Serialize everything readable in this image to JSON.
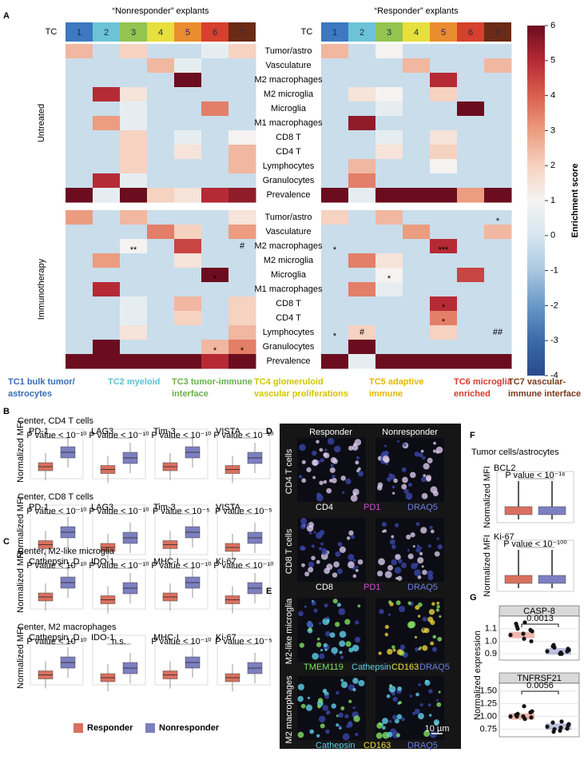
{
  "panel_a": {
    "label": "A",
    "titles": [
      "“Nonresponder” explants",
      "“Responder” explants"
    ],
    "tc_label": "TC",
    "clusters": [
      "1",
      "2",
      "3",
      "4",
      "5",
      "6",
      "7"
    ],
    "cluster_colors": [
      "#3d78c0",
      "#6cc3d8",
      "#93c450",
      "#e6df3c",
      "#ea8c30",
      "#d6402c",
      "#6b2a16"
    ],
    "rows": [
      "Tumor/astro",
      "Vasculature",
      "M2 macrophages",
      "M2 microglia",
      "Microglia",
      "M1 macrophages",
      "CD8 T",
      "CD4 T",
      "Lymphocytes",
      "Granulocytes",
      "Prevalence"
    ],
    "groups": [
      "Untreated",
      "Immunotherapy"
    ],
    "heatmaps": [
      {
        "values": [
          [
            2.5,
            -0.3,
            2,
            -0.3,
            -0.3,
            0.5,
            2
          ],
          [
            -0.3,
            -0.3,
            -0.3,
            2.5,
            0.5,
            -0.3,
            -0.3
          ],
          [
            -0.3,
            -0.3,
            -0.3,
            -0.3,
            6,
            -0.3,
            -0.3
          ],
          [
            -0.3,
            5,
            1.5,
            -0.3,
            -0.3,
            -0.3,
            -0.3
          ],
          [
            -0.3,
            -0.3,
            0.5,
            -0.3,
            -0.3,
            3.5,
            -0.3
          ],
          [
            -0.3,
            3,
            0.5,
            -0.3,
            -0.3,
            -0.3,
            -0.3
          ],
          [
            -0.3,
            -0.3,
            2,
            -0.3,
            0.5,
            -0.3,
            1
          ],
          [
            -0.3,
            -0.3,
            2,
            -0.3,
            1.5,
            -0.3,
            2.5
          ],
          [
            -0.3,
            -0.3,
            2,
            -0.3,
            -0.3,
            -0.3,
            2.5
          ],
          [
            -0.3,
            5,
            0.5,
            -0.3,
            -0.3,
            -0.3,
            -0.3
          ],
          [
            6,
            0.5,
            6,
            2,
            1.5,
            5,
            5.5
          ]
        ],
        "marks": []
      },
      {
        "values": [
          [
            2.5,
            -0.3,
            1,
            -0.3,
            -0.3,
            -0.3,
            -0.3
          ],
          [
            -0.3,
            -0.3,
            -0.3,
            2.5,
            -0.3,
            -0.3,
            2.5
          ],
          [
            -0.3,
            -0.3,
            -0.3,
            -0.3,
            5,
            -0.3,
            -0.3
          ],
          [
            -0.3,
            1.5,
            1,
            -0.3,
            2,
            -0.3,
            -0.3
          ],
          [
            -0.3,
            -0.3,
            0.5,
            -0.3,
            -0.3,
            6,
            -0.3
          ],
          [
            -0.3,
            5.5,
            -0.3,
            -0.3,
            -0.3,
            -0.3,
            -0.3
          ],
          [
            -0.3,
            -0.3,
            0.5,
            -0.3,
            1.5,
            -0.3,
            -0.3
          ],
          [
            -0.3,
            -0.3,
            1.5,
            -0.3,
            2,
            -0.3,
            -0.3
          ],
          [
            -0.3,
            2.5,
            -0.3,
            -0.3,
            1,
            -0.3,
            -0.3
          ],
          [
            -0.3,
            3.5,
            -0.3,
            -0.3,
            -0.3,
            -0.3,
            -0.3
          ],
          [
            6,
            0.5,
            6,
            6,
            6,
            3,
            6
          ]
        ],
        "marks": []
      },
      {
        "values": [
          [
            3,
            -0.3,
            2.5,
            -0.3,
            -0.3,
            -0.3,
            1.5
          ],
          [
            -0.3,
            -0.3,
            -0.3,
            3.5,
            2,
            -0.3,
            3
          ],
          [
            -0.3,
            -0.3,
            1,
            -0.3,
            4.5,
            -0.3,
            -0.3
          ],
          [
            -0.3,
            3,
            -0.3,
            -0.3,
            1.5,
            -0.3,
            -0.3
          ],
          [
            -0.3,
            -0.3,
            -0.3,
            -0.3,
            -0.3,
            6,
            -0.3
          ],
          [
            -0.3,
            5,
            -0.3,
            -0.3,
            -0.3,
            -0.3,
            -0.3
          ],
          [
            -0.3,
            -0.3,
            0.5,
            -0.3,
            2.5,
            -0.3,
            2
          ],
          [
            -0.3,
            -0.3,
            0.5,
            -0.3,
            2,
            -0.3,
            2
          ],
          [
            -0.3,
            -0.3,
            1.5,
            -0.3,
            -0.3,
            -0.3,
            2.5
          ],
          [
            -0.3,
            6,
            -0.3,
            -0.3,
            -0.3,
            2.5,
            3.5
          ],
          [
            6,
            6,
            6,
            6,
            6,
            5,
            6
          ]
        ],
        "marks": [
          [
            null,
            null,
            null,
            null,
            null,
            null,
            null
          ],
          [
            null,
            null,
            null,
            null,
            null,
            null,
            null
          ],
          [
            null,
            null,
            "**",
            null,
            null,
            null,
            "#"
          ],
          [
            null,
            null,
            null,
            null,
            null,
            null,
            null
          ],
          [
            null,
            null,
            null,
            null,
            null,
            "*",
            null
          ],
          [
            null,
            null,
            null,
            null,
            null,
            null,
            null
          ],
          [
            null,
            null,
            null,
            null,
            null,
            null,
            null
          ],
          [
            null,
            null,
            null,
            null,
            null,
            null,
            null
          ],
          [
            null,
            null,
            null,
            null,
            null,
            null,
            null
          ],
          [
            null,
            null,
            null,
            null,
            null,
            "*",
            "*"
          ]
        ]
      },
      {
        "values": [
          [
            2,
            -0.3,
            2.5,
            -0.3,
            -0.3,
            -0.3,
            -0.3
          ],
          [
            -0.3,
            -0.3,
            -0.3,
            3,
            -0.3,
            -0.3,
            2.5
          ],
          [
            -0.3,
            -0.3,
            -0.3,
            -0.3,
            5,
            -0.3,
            -0.3
          ],
          [
            -0.3,
            3.5,
            1.5,
            -0.3,
            -0.3,
            -0.3,
            -0.3
          ],
          [
            -0.3,
            -0.3,
            1,
            -0.3,
            -0.3,
            4.5,
            -0.3
          ],
          [
            -0.3,
            3.5,
            0.5,
            -0.3,
            -0.3,
            -0.3,
            -0.3
          ],
          [
            -0.3,
            -0.3,
            -0.3,
            -0.3,
            5,
            -0.3,
            -0.3
          ],
          [
            -0.3,
            -0.3,
            -0.3,
            -0.3,
            3.5,
            -0.3,
            -0.3
          ],
          [
            -0.3,
            2,
            -0.3,
            -0.3,
            2,
            -0.3,
            -0.3
          ],
          [
            -0.3,
            6,
            -0.3,
            -0.3,
            -0.3,
            -0.3,
            -0.3
          ],
          [
            6,
            0.5,
            6,
            6,
            6,
            6,
            6
          ]
        ],
        "marks": [
          [
            null,
            null,
            null,
            null,
            null,
            null,
            "*"
          ],
          [
            null,
            null,
            null,
            null,
            null,
            null,
            null
          ],
          [
            "*",
            null,
            null,
            null,
            "***",
            null,
            null
          ],
          [
            null,
            null,
            null,
            null,
            null,
            null,
            null
          ],
          [
            null,
            null,
            "*",
            null,
            null,
            null,
            null
          ],
          [
            null,
            null,
            null,
            null,
            null,
            null,
            null
          ],
          [
            null,
            null,
            null,
            null,
            "*",
            null,
            null
          ],
          [
            null,
            null,
            null,
            null,
            "*",
            null,
            null
          ],
          [
            "*",
            "#",
            null,
            null,
            null,
            null,
            "##"
          ]
        ]
      }
    ],
    "colorbar": {
      "title": "Enrichment score",
      "lim": [
        -4,
        6
      ],
      "ticks": [
        -4,
        -3,
        -2,
        -1,
        0,
        1,
        2,
        3,
        4,
        5,
        6
      ],
      "colors": [
        "#2a4a8c",
        "#3b6aa8",
        "#6a98c8",
        "#a9c7e0",
        "#d6e6f0",
        "#f5f3f1",
        "#f6d2c1",
        "#ec9c80",
        "#d9604f",
        "#b52a35",
        "#6b0d1f"
      ]
    },
    "legend": [
      {
        "lines": [
          "TC1 bulk tumor/",
          "astrocytes"
        ],
        "color": "#3a6cb5"
      },
      {
        "lines": [
          "TC2 myeloid"
        ],
        "color": "#5fc0d5"
      },
      {
        "lines": [
          "TC3 tumor-immune",
          "interface"
        ],
        "color": "#6ab04c"
      },
      {
        "lines": [
          "TC4 glomeruloid",
          "vascular proliferations"
        ],
        "color": "#d2c600"
      },
      {
        "lines": [
          "TC5 adaptive",
          "immune"
        ],
        "color": "#e2b800"
      },
      {
        "lines": [
          "TC6 microglia",
          "enriched"
        ],
        "color": "#d43c2a"
      },
      {
        "lines": [
          "TC7 vascular-",
          "immune interface"
        ],
        "color": "#7a3a1a"
      }
    ]
  },
  "panel_b": {
    "label": "B",
    "y_label": "Normalized MFI",
    "sections": [
      {
        "subtitle": "Center, CD4 T cells",
        "plots": [
          {
            "marker": "PD-1",
            "p": "P value < 10⁻¹⁰"
          },
          {
            "marker": "LAG3",
            "p": "P value < 10⁻¹⁰"
          },
          {
            "marker": "Tim-3",
            "p": "P value < 10⁻¹⁰"
          },
          {
            "marker": "VISTA",
            "p": "P value < 10⁻¹⁰"
          }
        ]
      },
      {
        "subtitle": "Center, CD8 T cells",
        "plots": [
          {
            "marker": "PD-1",
            "p": "P value < 10⁻¹⁰"
          },
          {
            "marker": "LAG3",
            "p": "P value < 10⁻¹⁰"
          },
          {
            "marker": "Tim-3",
            "p": "P value < 10⁻⁵"
          },
          {
            "marker": "VISTA",
            "p": "P value < 10⁻⁵"
          }
        ]
      }
    ]
  },
  "panel_c": {
    "label": "C",
    "y_label": "Normalized MFI",
    "sections": [
      {
        "subtitle": "Center, M2-like microglia",
        "plots": [
          {
            "marker": "Cathepsin_D",
            "p": "P value < 10⁻¹⁰"
          },
          {
            "marker": "IDO-1",
            "p": "P value < 10⁻¹⁰"
          },
          {
            "marker": "MHC-I",
            "p": "P value < 10⁻¹⁰"
          },
          {
            "marker": "Ki-67",
            "p": "P value < 10⁻¹⁰"
          }
        ]
      },
      {
        "subtitle": "Center, M2 macrophages",
        "plots": [
          {
            "marker": "Cathepsin_D",
            "p": "P value < 10⁻¹⁰"
          },
          {
            "marker": "IDO-1",
            "p": "n.s."
          },
          {
            "marker": "MHC-I",
            "p": "P value < 10⁻¹⁰"
          },
          {
            "marker": "Ki-67",
            "p": "P value < 10⁻⁵"
          }
        ]
      }
    ]
  },
  "box_legend": [
    {
      "name": "Responder",
      "color": "#d9705f"
    },
    {
      "name": "Nonresponder",
      "color": "#7c7fc0"
    }
  ],
  "panel_d": {
    "label": "D",
    "columns": [
      "Responder",
      "Nonresponder"
    ],
    "rows": [
      {
        "label": "CD4 T cells",
        "stains": [
          {
            "text": "CD4",
            "color": "#ffffff"
          },
          {
            "text": "PD1",
            "color": "#d050c8"
          },
          {
            "text": "DRAQ5",
            "color": "#6a7ee0"
          }
        ]
      },
      {
        "label": "CD8 T cells",
        "stains": [
          {
            "text": "CD8",
            "color": "#ffffff"
          },
          {
            "text": "PD1",
            "color": "#d050c8"
          },
          {
            "text": "DRAQ5",
            "color": "#6a7ee0"
          }
        ]
      },
      {
        "label": "M2-like microglia",
        "stains": [
          {
            "text": "TMEM119",
            "color": "#7fe060"
          },
          {
            "text": "Cathepsin",
            "color": "#5fd0e8"
          },
          {
            "text": "CD163",
            "color": "#f0e040"
          },
          {
            "text": "DRAQ5",
            "color": "#6a7ee0"
          }
        ]
      },
      {
        "label": "M2 macrophages",
        "stains": [
          {
            "text": "Cathepsin",
            "color": "#5fd0e8"
          },
          {
            "text": "CD163",
            "color": "#f0e040"
          },
          {
            "text": "DRAQ5",
            "color": "#6a7ee0"
          }
        ]
      }
    ],
    "scale": "10 µm"
  },
  "panel_e": {
    "label": "E"
  },
  "panel_f": {
    "label": "F",
    "title": "Tumor cells/astrocytes",
    "y_label": "Normalized MFI",
    "plots": [
      {
        "marker": "BCL2",
        "p": "P value < 10⁻¹⁶"
      },
      {
        "marker": "Ki-67",
        "p": "P value < 10⁻¹⁰⁰"
      }
    ]
  },
  "panel_g": {
    "label": "G",
    "y_label": "Normalized expression",
    "facets": [
      {
        "name": "CASP-8",
        "p": "0.0013",
        "ylim": [
          0.85,
          1.2
        ],
        "yticks": [
          0.9,
          {
            "value": 1,
            "label": "1.0"
          },
          1.1
        ],
        "responder": [
          1.05,
          1.1,
          1.15,
          1.08,
          1.12,
          1.02,
          1.0,
          1.14,
          1.06,
          1.09
        ],
        "nonresponder": [
          0.92,
          0.95,
          0.9,
          0.93,
          0.97,
          0.91,
          0.94,
          0.96,
          0.9,
          0.92
        ]
      },
      {
        "name": "TNFRSF21",
        "p": "0.0056",
        "ylim": [
          0.6,
          1.65
        ],
        "yticks": [
          0.75,
          {
            "value": 1,
            "label": "1.00"
          },
          1.25,
          {
            "value": 1.5,
            "label": "1.50"
          }
        ],
        "responder": [
          1.0,
          1.05,
          0.95,
          1.1,
          1.0,
          1.2,
          0.98,
          1.03,
          1.0,
          1.08
        ],
        "nonresponder": [
          0.8,
          0.75,
          0.9,
          0.85,
          0.7,
          0.78,
          0.82,
          0.88,
          0.72,
          0.76
        ]
      }
    ]
  }
}
